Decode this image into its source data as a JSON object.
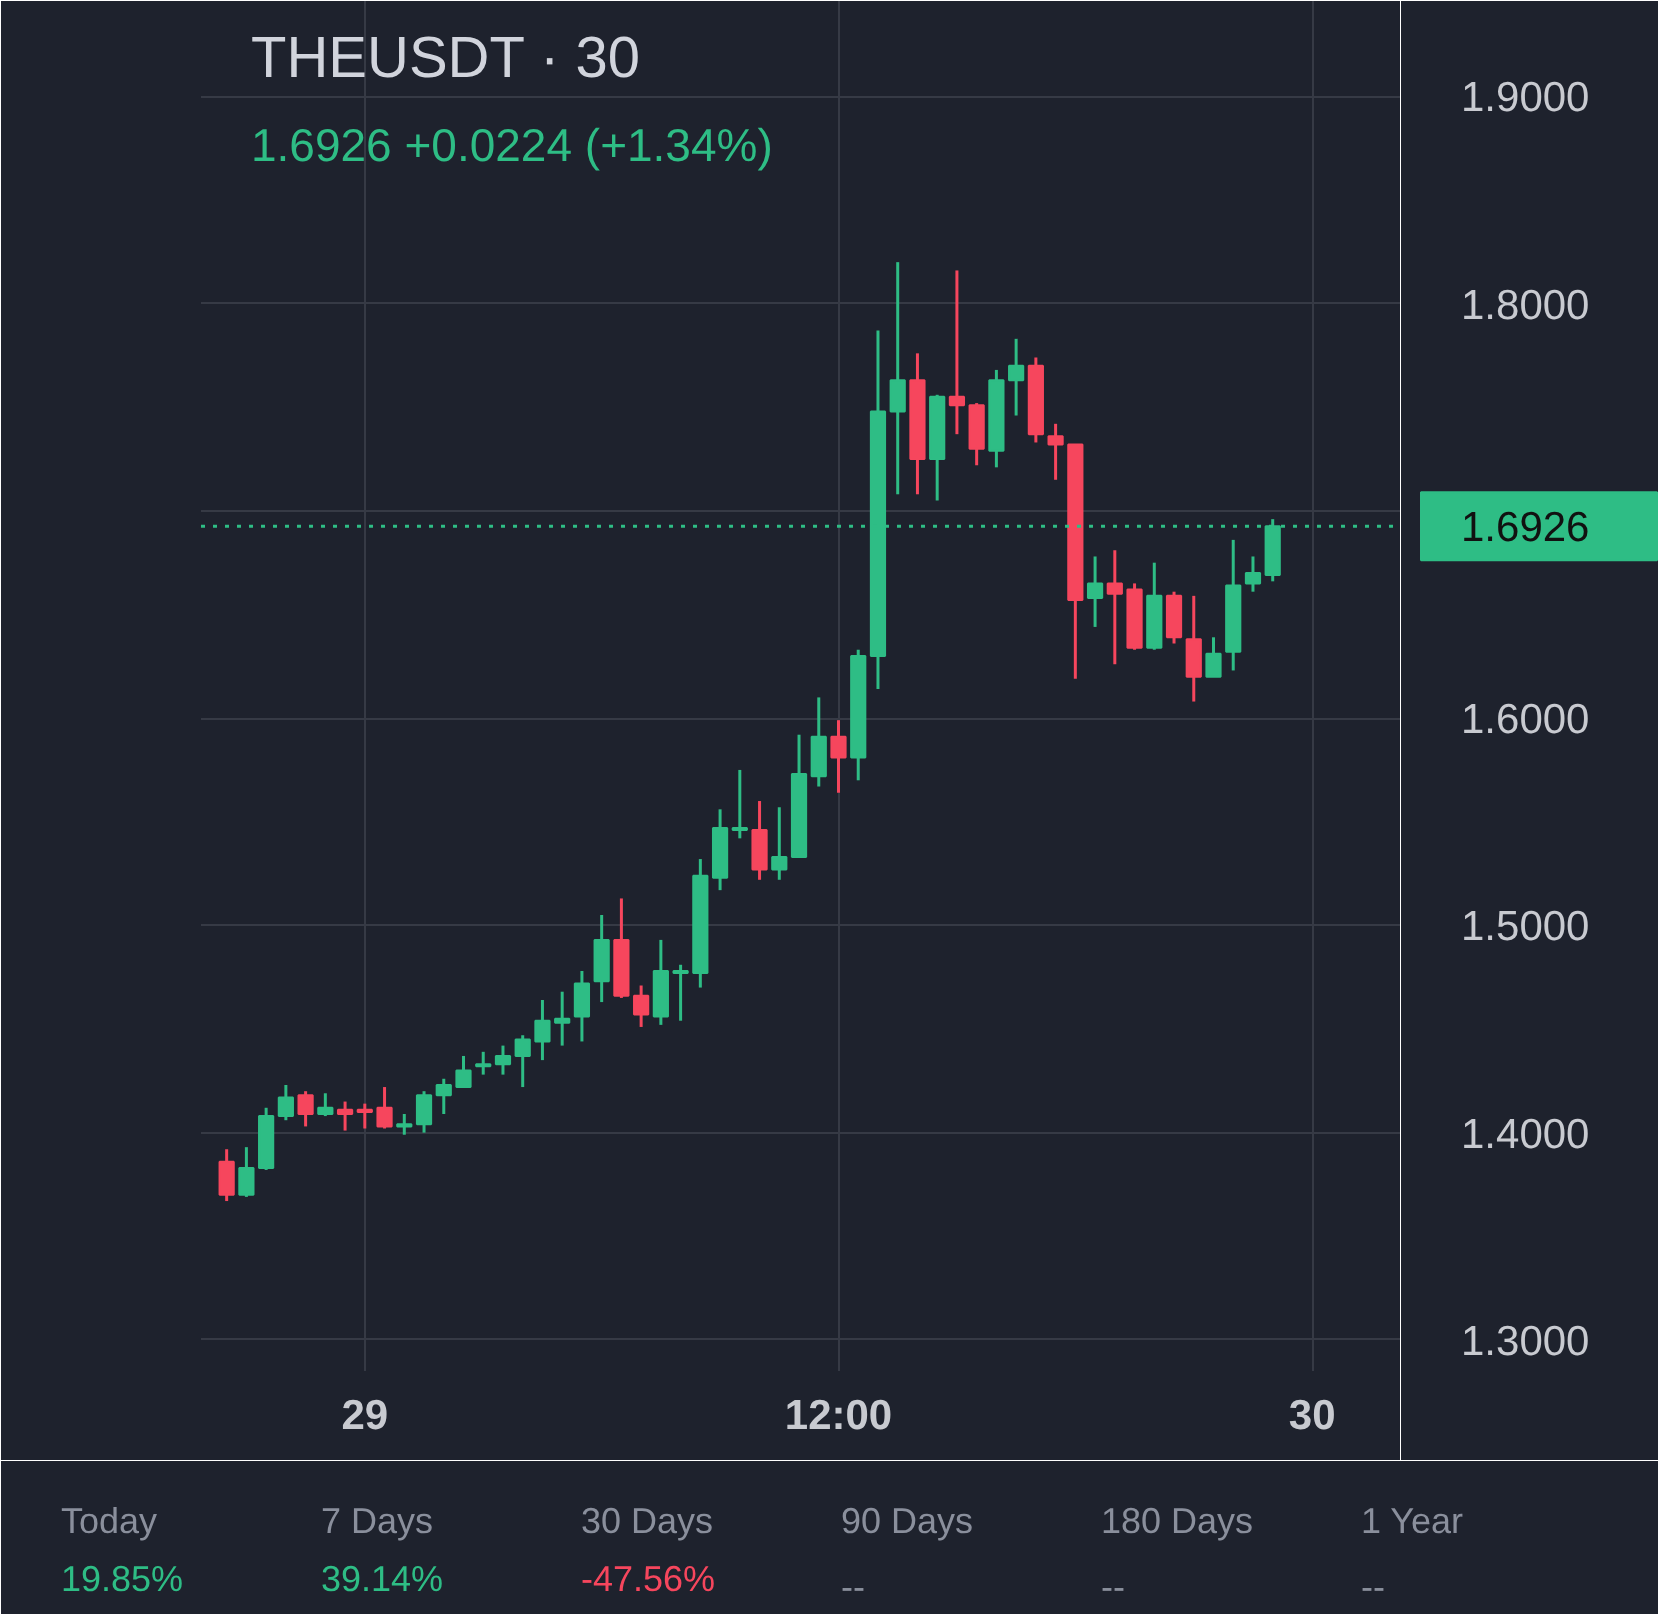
{
  "chart_data": {
    "type": "candlestick",
    "title": "THEUSDT · 30",
    "subtitle": "1.6926 +0.0224 (+1.34%)",
    "categories": [
      null,
      null,
      null,
      null,
      null,
      null,
      null,
      "29",
      null,
      null,
      null,
      null,
      null,
      null,
      null,
      null,
      null,
      null,
      null,
      null,
      null,
      null,
      null,
      null,
      null,
      null,
      null,
      null,
      null,
      null,
      null,
      "12:00",
      null,
      null,
      null,
      null,
      null,
      null,
      null,
      null,
      null,
      null,
      null,
      null,
      null,
      null,
      null,
      null,
      null,
      null,
      null,
      null,
      null,
      null,
      null,
      "30",
      null,
      null,
      null,
      null
    ],
    "ohlc": [
      [
        1.386,
        1.392,
        1.367,
        1.37
      ],
      [
        1.37,
        1.393,
        1.369,
        1.383
      ],
      [
        1.383,
        1.412,
        1.382,
        1.408
      ],
      [
        1.408,
        1.423,
        1.406,
        1.417
      ],
      [
        1.418,
        1.42,
        1.403,
        1.409
      ],
      [
        1.409,
        1.419,
        1.408,
        1.412
      ],
      [
        1.411,
        1.415,
        1.401,
        1.409
      ],
      [
        1.411,
        1.414,
        1.402,
        1.41
      ],
      [
        1.412,
        1.422,
        1.402,
        1.403
      ],
      [
        1.403,
        1.409,
        1.399,
        1.404
      ],
      [
        1.404,
        1.42,
        1.4,
        1.418
      ],
      [
        1.418,
        1.426,
        1.409,
        1.423
      ],
      [
        1.422,
        1.437,
        1.422,
        1.43
      ],
      [
        1.432,
        1.439,
        1.428,
        1.433
      ],
      [
        1.433,
        1.442,
        1.428,
        1.437
      ],
      [
        1.437,
        1.447,
        1.422,
        1.445
      ],
      [
        1.444,
        1.464,
        1.435,
        1.454
      ],
      [
        1.453,
        1.468,
        1.442,
        1.455
      ],
      [
        1.456,
        1.478,
        1.444,
        1.472
      ],
      [
        1.473,
        1.505,
        1.463,
        1.493
      ],
      [
        1.493,
        1.513,
        1.465,
        1.466
      ],
      [
        1.466,
        1.471,
        1.451,
        1.457
      ],
      [
        1.456,
        1.493,
        1.452,
        1.478
      ],
      [
        1.477,
        1.481,
        1.454,
        1.478
      ],
      [
        1.477,
        1.532,
        1.47,
        1.524
      ],
      [
        1.523,
        1.556,
        1.517,
        1.547
      ],
      [
        1.546,
        1.575,
        1.542,
        1.547
      ],
      [
        1.546,
        1.56,
        1.522,
        1.527
      ],
      [
        1.527,
        1.557,
        1.522,
        1.533
      ],
      [
        1.533,
        1.592,
        1.533,
        1.573
      ],
      [
        1.572,
        1.61,
        1.567,
        1.591
      ],
      [
        1.591,
        1.599,
        1.564,
        1.581
      ],
      [
        1.581,
        1.633,
        1.57,
        1.63
      ],
      [
        1.63,
        1.787,
        1.614,
        1.748
      ],
      [
        1.748,
        1.82,
        1.708,
        1.763
      ],
      [
        1.763,
        1.776,
        1.708,
        1.725
      ],
      [
        1.725,
        1.756,
        1.705,
        1.755
      ],
      [
        1.755,
        1.816,
        1.737,
        1.751
      ],
      [
        1.751,
        1.752,
        1.722,
        1.73
      ],
      [
        1.729,
        1.768,
        1.721,
        1.763
      ],
      [
        1.763,
        1.783,
        1.746,
        1.77
      ],
      [
        1.77,
        1.774,
        1.733,
        1.737
      ],
      [
        1.736,
        1.742,
        1.715,
        1.732
      ],
      [
        1.732,
        1.732,
        1.619,
        1.657
      ],
      [
        1.658,
        1.678,
        1.644,
        1.665
      ],
      [
        1.665,
        1.681,
        1.626,
        1.66
      ],
      [
        1.662,
        1.665,
        1.633,
        1.634
      ],
      [
        1.634,
        1.675,
        1.633,
        1.659
      ],
      [
        1.659,
        1.661,
        1.636,
        1.639
      ],
      [
        1.638,
        1.659,
        1.608,
        1.62
      ],
      [
        1.62,
        1.639,
        1.62,
        1.631
      ],
      [
        1.632,
        1.686,
        1.623,
        1.664
      ],
      [
        1.665,
        1.678,
        1.661,
        1.67
      ],
      [
        1.669,
        1.696,
        1.666,
        1.6926
      ],
      null,
      null,
      null,
      null,
      null,
      null
    ],
    "colors": [
      "#f6465d",
      "#2ebd85",
      "#2ebd85",
      "#2ebd85",
      "#f6465d",
      "#2ebd85",
      "#f6465d",
      "#f6465d",
      "#f6465d",
      "#2ebd85",
      "#2ebd85",
      "#2ebd85",
      "#2ebd85",
      "#2ebd85",
      "#2ebd85",
      "#2ebd85",
      "#2ebd85",
      "#2ebd85",
      "#2ebd85",
      "#2ebd85",
      "#f6465d",
      "#f6465d",
      "#2ebd85",
      "#2ebd85",
      "#2ebd85",
      "#2ebd85",
      "#2ebd85",
      "#f6465d",
      "#2ebd85",
      "#2ebd85",
      "#2ebd85",
      "#f6465d",
      "#2ebd85",
      "#2ebd85",
      "#2ebd85",
      "#f6465d",
      "#2ebd85",
      "#f6465d",
      "#f6465d",
      "#2ebd85",
      "#2ebd85",
      "#f6465d",
      "#f6465d",
      "#f6465d",
      "#2ebd85",
      "#f6465d",
      "#f6465d",
      "#2ebd85",
      "#f6465d",
      "#f6465d",
      "#2ebd85",
      "#2ebd85",
      "#2ebd85",
      "#2ebd85",
      null,
      null,
      null,
      null,
      null,
      null
    ],
    "ylim": [
      1.285,
      1.946
    ],
    "yticks": [
      {
        "value": 1.3,
        "label": "1.3000"
      },
      {
        "value": 1.4,
        "label": "1.4000"
      },
      {
        "value": 1.5,
        "label": "1.5000"
      },
      {
        "value": 1.6,
        "label": "1.6000"
      },
      {
        "value": 1.7,
        "label": null
      },
      {
        "value": 1.8,
        "label": "1.8000"
      },
      {
        "value": 1.9,
        "label": "1.9000"
      }
    ],
    "grid": true,
    "ref_lines": [
      {
        "axis": "y",
        "value": 1.6926,
        "label": "1.6926",
        "color": "#2ebd85",
        "line_style": "dotted"
      }
    ],
    "annotations": [
      "Today",
      "19.85%",
      "7 Days",
      "39.14%",
      "30 Days",
      "-47.56%",
      "90 Days",
      "--",
      "180 Days",
      "--",
      "1 Year",
      "--"
    ]
  }
}
